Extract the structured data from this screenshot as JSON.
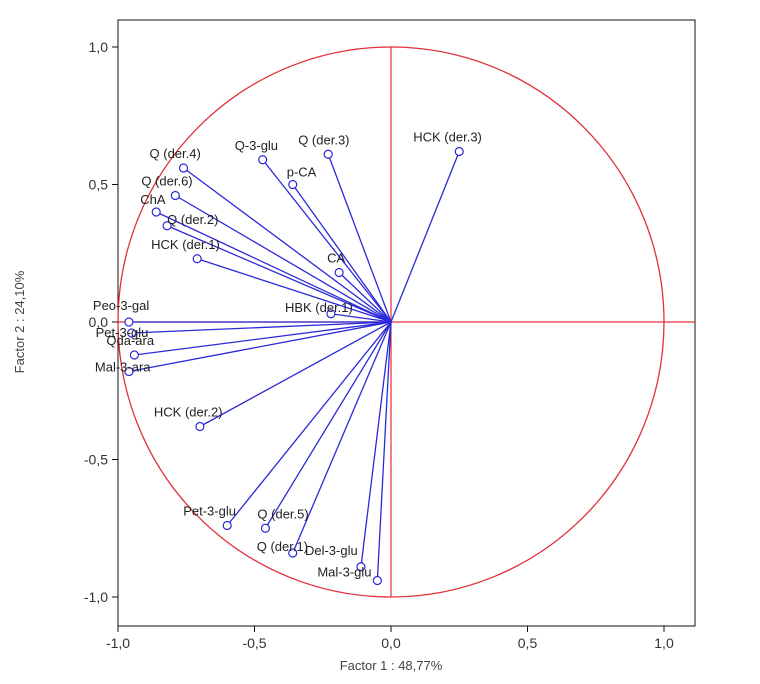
{
  "chart_data": {
    "type": "scatter",
    "title": "",
    "xlabel": "Factor 1 : 48,77%",
    "ylabel": "Factor 2 : 24,10%",
    "xlim": [
      -1.1,
      1.1
    ],
    "ylim": [
      -1.1,
      1.1
    ],
    "x_ticks": [
      "-1,0",
      "-0,5",
      "0,0",
      "0,5",
      "1,0"
    ],
    "y_ticks": [
      "1,0",
      "0,5",
      "0,0",
      "-0,5",
      "-1,0"
    ],
    "grid": false,
    "unit_circle": true,
    "colors": {
      "circle": "#e0303a",
      "vectors": "#2a2ad8",
      "frame": "#111111"
    },
    "points": [
      {
        "label": "HCK (der.3)",
        "x": 0.25,
        "y": 0.62
      },
      {
        "label": "Q (der.3)",
        "x": -0.23,
        "y": 0.61
      },
      {
        "label": "Q-3-glu",
        "x": -0.47,
        "y": 0.59
      },
      {
        "label": "p-CA",
        "x": -0.36,
        "y": 0.5
      },
      {
        "label": "Q (der.4)",
        "x": -0.76,
        "y": 0.56
      },
      {
        "label": "Q (der.6)",
        "x": -0.79,
        "y": 0.46
      },
      {
        "label": "ChA",
        "x": -0.86,
        "y": 0.4
      },
      {
        "label": "Q (der.2)",
        "x": -0.82,
        "y": 0.35
      },
      {
        "label": "HCK (der.1)",
        "x": -0.71,
        "y": 0.23
      },
      {
        "label": "CA",
        "x": -0.19,
        "y": 0.18
      },
      {
        "label": "HBK (der.1)",
        "x": -0.22,
        "y": 0.03
      },
      {
        "label": "Peo-3-gal",
        "x": -0.96,
        "y": 0.0
      },
      {
        "label": "Pet-3-glu",
        "x": -0.95,
        "y": -0.04
      },
      {
        "label": "Qda-ara",
        "x": -0.94,
        "y": -0.12
      },
      {
        "label": "Mal-3-ara",
        "x": -0.96,
        "y": -0.18
      },
      {
        "label": "HCK (der.2)",
        "x": -0.7,
        "y": -0.38
      },
      {
        "label": "Pet-3-glu",
        "x": -0.6,
        "y": -0.74
      },
      {
        "label": "Q (der.5)",
        "x": -0.46,
        "y": -0.75
      },
      {
        "label": "Q (der.1)",
        "x": -0.36,
        "y": -0.84
      },
      {
        "label": "Del-3-glu",
        "x": -0.11,
        "y": -0.89
      },
      {
        "label": "Mal-3-glu",
        "x": -0.05,
        "y": -0.94
      }
    ]
  }
}
